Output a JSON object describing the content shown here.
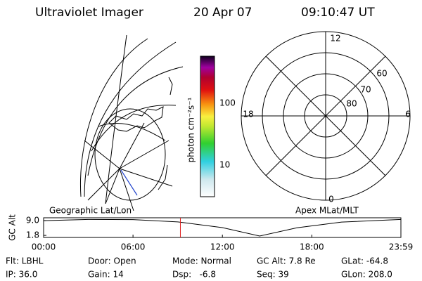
{
  "header": {
    "title": "Ultraviolet Imager",
    "date": "20 Apr 07",
    "time": "09:10:47 UT"
  },
  "colorbar": {
    "label": "photon cm⁻²s⁻¹",
    "ticks": [
      "100",
      "10"
    ]
  },
  "polar": {
    "mlt_labels": [
      "12",
      "18",
      "6",
      "0"
    ],
    "mlat_labels": [
      "60",
      "70",
      "80"
    ]
  },
  "altitude_plot": {
    "left_title": "Geographic Lat/Lon",
    "right_title": "Apex MLat/MLT",
    "ylabel": "GC Alt",
    "yticks": [
      9.0,
      1.8
    ],
    "ytick_labels": [
      "9.0",
      "1.8"
    ],
    "ylim": [
      0.8,
      10.4
    ],
    "xlim": [
      0,
      23.98
    ],
    "xticks": [
      {
        "value": 0,
        "label": "00:00"
      },
      {
        "value": 6,
        "label": "06:00"
      },
      {
        "value": 12,
        "label": "12:00"
      },
      {
        "value": 18,
        "label": "18:00"
      },
      {
        "value": 23.98,
        "label": "23:59"
      }
    ],
    "x": [
      0,
      3,
      6,
      9,
      12,
      14.5,
      17,
      20,
      23.98
    ],
    "values": [
      9.0,
      9.6,
      9.5,
      8.4,
      5.6,
      1.5,
      5.5,
      8.3,
      9.6
    ],
    "current_time": 9.18
  },
  "status": {
    "rows": [
      [
        "Flt: LBHL",
        "Door: Open",
        "Mode: Normal",
        "GC Alt: 7.8 Re",
        "GLat: -64.8"
      ],
      [
        "IP: 36.0",
        "Gain: 14",
        "Dsp:   -6.8",
        "Seq: 39",
        "GLon: 208.0"
      ]
    ]
  }
}
